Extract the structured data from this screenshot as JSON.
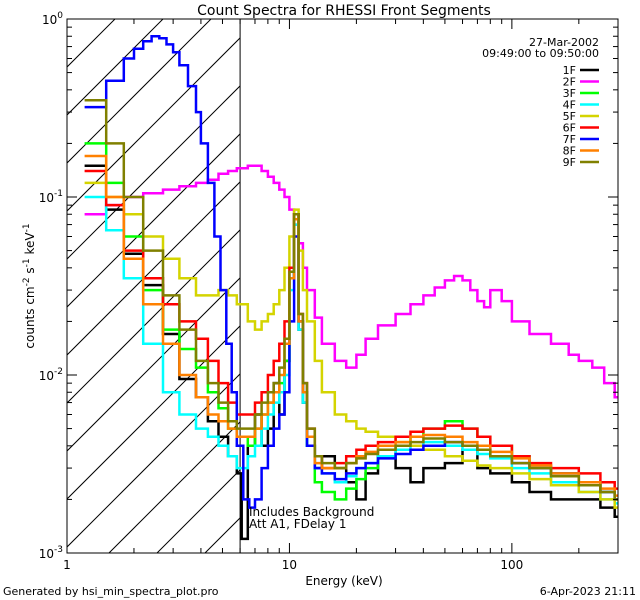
{
  "chart_data": {
    "type": "line",
    "title": "Count Spectra for RHESSI Front Segments",
    "xlabel": "Energy (keV)",
    "ylabel_parts": {
      "prefix": "counts cm",
      "sup1": "-2",
      "mid": " s",
      "sup2": "-1",
      "unit": " keV",
      "sup3": "-1"
    },
    "x_scale": "log",
    "y_scale": "log",
    "xlim": [
      1,
      300
    ],
    "ylim": [
      0.001,
      1
    ],
    "x_ticks": [
      {
        "value": 1,
        "label": "1"
      },
      {
        "value": 10,
        "label": "10"
      },
      {
        "value": 100,
        "label": "100"
      }
    ],
    "y_ticks": [
      {
        "value": 0.001,
        "base": "10",
        "exp": "-3"
      },
      {
        "value": 0.01,
        "base": "10",
        "exp": "-2"
      },
      {
        "value": 0.1,
        "base": "10",
        "exp": "-1"
      },
      {
        "value": 1,
        "base": "10",
        "exp": "0"
      }
    ],
    "shaded_region": {
      "x_min": 1,
      "x_max": 6,
      "pattern": "diagonal-hatch"
    },
    "date": "27-Mar-2002",
    "time_range": "09:49:00 to 09:50:00",
    "annotations": [
      "Includes Background",
      "Att A1, FDelay 1"
    ],
    "footer_left": "Generated by hsi_min_spectra_plot.pro",
    "footer_right": "6-Apr-2023 21:11",
    "legend_position": "top-right",
    "series": [
      {
        "name": "1F",
        "color": "#000000",
        "x": [
          1.2,
          1.5,
          1.8,
          2.2,
          2.7,
          3.2,
          3.8,
          4.3,
          4.8,
          5.3,
          5.8,
          6.1,
          6.5,
          7.0,
          7.5,
          8.0,
          8.5,
          9.0,
          9.5,
          10.0,
          10.5,
          11.0,
          11.5,
          12.0,
          13.0,
          14.0,
          16.0,
          18.0,
          20.0,
          22.0,
          25.0,
          30.0,
          35.0,
          40.0,
          50.0,
          60.0,
          70.0,
          80.0,
          100.0,
          120.0,
          150.0,
          200.0,
          250.0,
          290.0
        ],
        "y": [
          0.15,
          0.085,
          0.048,
          0.032,
          0.017,
          0.0095,
          0.0075,
          0.0055,
          0.0045,
          0.0035,
          0.0028,
          0.0012,
          0.004,
          0.006,
          0.004,
          0.005,
          0.009,
          0.006,
          0.012,
          0.035,
          0.08,
          0.018,
          0.007,
          0.004,
          0.003,
          0.0035,
          0.003,
          0.0025,
          0.002,
          0.0028,
          0.0035,
          0.003,
          0.0025,
          0.003,
          0.0032,
          0.0038,
          0.003,
          0.0028,
          0.0025,
          0.0022,
          0.002,
          0.002,
          0.0018,
          0.0016
        ]
      },
      {
        "name": "2F",
        "color": "#ff00ff",
        "x": [
          1.2,
          1.5,
          1.8,
          2.2,
          2.7,
          3.2,
          3.8,
          4.3,
          4.8,
          5.3,
          5.8,
          6.5,
          7.0,
          7.5,
          8.0,
          8.5,
          9.0,
          9.5,
          10.0,
          10.5,
          11.0,
          11.5,
          12.0,
          13.0,
          14.0,
          16.0,
          18.0,
          20.0,
          22.0,
          25.0,
          30.0,
          35.0,
          40.0,
          45.0,
          50.0,
          55.0,
          60.0,
          65.0,
          70.0,
          75.0,
          80.0,
          90.0,
          100.0,
          120.0,
          150.0,
          180.0,
          200.0,
          230.0,
          260.0,
          290.0
        ],
        "y": [
          0.08,
          0.09,
          0.1,
          0.105,
          0.11,
          0.115,
          0.12,
          0.125,
          0.135,
          0.14,
          0.145,
          0.15,
          0.15,
          0.14,
          0.13,
          0.12,
          0.11,
          0.1,
          0.085,
          0.07,
          0.055,
          0.04,
          0.03,
          0.021,
          0.015,
          0.012,
          0.011,
          0.013,
          0.016,
          0.019,
          0.022,
          0.025,
          0.028,
          0.031,
          0.034,
          0.036,
          0.034,
          0.03,
          0.026,
          0.024,
          0.03,
          0.026,
          0.02,
          0.017,
          0.015,
          0.013,
          0.012,
          0.011,
          0.009,
          0.0075
        ]
      },
      {
        "name": "3F",
        "color": "#00ff00",
        "x": [
          1.2,
          1.5,
          1.8,
          2.2,
          2.7,
          3.2,
          3.8,
          4.3,
          4.8,
          5.3,
          5.8,
          6.5,
          7.0,
          7.5,
          8.0,
          8.5,
          9.0,
          9.5,
          10.0,
          10.5,
          11.0,
          11.5,
          12.0,
          13.0,
          14.0,
          16.0,
          18.0,
          20.0,
          22.0,
          25.0,
          30.0,
          35.0,
          40.0,
          50.0,
          60.0,
          70.0,
          80.0,
          100.0,
          120.0,
          150.0,
          200.0,
          250.0,
          290.0
        ],
        "y": [
          0.2,
          0.12,
          0.06,
          0.03,
          0.018,
          0.014,
          0.011,
          0.008,
          0.0065,
          0.005,
          0.0045,
          0.004,
          0.005,
          0.006,
          0.007,
          0.008,
          0.009,
          0.012,
          0.035,
          0.075,
          0.02,
          0.008,
          0.004,
          0.0025,
          0.0022,
          0.002,
          0.0023,
          0.0026,
          0.003,
          0.0035,
          0.004,
          0.0045,
          0.005,
          0.0055,
          0.005,
          0.0045,
          0.004,
          0.0035,
          0.003,
          0.0028,
          0.0025,
          0.0022,
          0.002
        ]
      },
      {
        "name": "4F",
        "color": "#00ffff",
        "x": [
          1.2,
          1.5,
          1.8,
          2.2,
          2.7,
          3.2,
          3.8,
          4.3,
          4.8,
          5.3,
          5.8,
          6.5,
          7.0,
          7.5,
          8.0,
          8.5,
          9.0,
          9.5,
          10.0,
          10.5,
          11.0,
          11.5,
          12.0,
          13.0,
          14.0,
          16.0,
          18.0,
          20.0,
          22.0,
          25.0,
          30.0,
          35.0,
          40.0,
          50.0,
          60.0,
          70.0,
          80.0,
          100.0,
          120.0,
          150.0,
          200.0,
          250.0,
          290.0
        ],
        "y": [
          0.1,
          0.065,
          0.035,
          0.015,
          0.008,
          0.006,
          0.005,
          0.0045,
          0.004,
          0.0035,
          0.003,
          0.0035,
          0.004,
          0.005,
          0.006,
          0.007,
          0.008,
          0.01,
          0.03,
          0.07,
          0.018,
          0.007,
          0.004,
          0.003,
          0.0028,
          0.0025,
          0.0027,
          0.003,
          0.0032,
          0.0035,
          0.0038,
          0.004,
          0.0042,
          0.004,
          0.0038,
          0.0036,
          0.0034,
          0.003,
          0.0028,
          0.0025,
          0.0022,
          0.002,
          0.0019
        ]
      },
      {
        "name": "5F",
        "color": "#d4d400",
        "x": [
          1.2,
          1.5,
          1.8,
          2.2,
          2.7,
          3.2,
          3.8,
          4.3,
          4.8,
          5.3,
          5.8,
          6.5,
          7.0,
          7.5,
          8.0,
          8.5,
          9.0,
          9.5,
          10.0,
          10.5,
          11.0,
          11.5,
          12.0,
          13.0,
          14.0,
          16.0,
          18.0,
          20.0,
          22.0,
          25.0,
          30.0,
          35.0,
          40.0,
          50.0,
          60.0,
          70.0,
          80.0,
          100.0,
          120.0,
          150.0,
          200.0,
          250.0,
          290.0
        ],
        "y": [
          0.12,
          0.1,
          0.08,
          0.06,
          0.045,
          0.035,
          0.028,
          0.028,
          0.03,
          0.028,
          0.025,
          0.02,
          0.018,
          0.02,
          0.022,
          0.025,
          0.03,
          0.04,
          0.06,
          0.085,
          0.05,
          0.03,
          0.02,
          0.012,
          0.008,
          0.006,
          0.0055,
          0.005,
          0.0048,
          0.0045,
          0.0042,
          0.004,
          0.0038,
          0.0035,
          0.0033,
          0.0031,
          0.003,
          0.0028,
          0.0026,
          0.0024,
          0.0022,
          0.002,
          0.0018
        ]
      },
      {
        "name": "6F",
        "color": "#ff0000",
        "x": [
          1.2,
          1.5,
          1.8,
          2.2,
          2.7,
          3.2,
          3.8,
          4.3,
          4.8,
          5.3,
          5.8,
          6.5,
          7.0,
          7.5,
          8.0,
          8.5,
          9.0,
          9.5,
          10.0,
          10.5,
          11.0,
          11.5,
          12.0,
          13.0,
          14.0,
          16.0,
          18.0,
          20.0,
          22.0,
          25.0,
          30.0,
          35.0,
          40.0,
          50.0,
          60.0,
          70.0,
          80.0,
          100.0,
          120.0,
          150.0,
          200.0,
          250.0,
          290.0
        ],
        "y": [
          0.14,
          0.09,
          0.05,
          0.035,
          0.025,
          0.02,
          0.016,
          0.012,
          0.009,
          0.007,
          0.006,
          0.006,
          0.007,
          0.008,
          0.01,
          0.012,
          0.015,
          0.02,
          0.04,
          0.08,
          0.022,
          0.009,
          0.005,
          0.0035,
          0.003,
          0.0032,
          0.0035,
          0.0038,
          0.004,
          0.0042,
          0.0045,
          0.0048,
          0.005,
          0.0052,
          0.005,
          0.0045,
          0.004,
          0.0035,
          0.0032,
          0.003,
          0.0028,
          0.0025,
          0.0023
        ]
      },
      {
        "name": "7F",
        "color": "#0000ff",
        "x": [
          1.2,
          1.5,
          1.8,
          2.0,
          2.2,
          2.4,
          2.6,
          2.8,
          3.0,
          3.2,
          3.5,
          3.8,
          4.0,
          4.3,
          4.6,
          4.9,
          5.2,
          5.5,
          5.8,
          6.2,
          6.6,
          7.0,
          7.5,
          8.0,
          8.5,
          9.0,
          9.5,
          10.0,
          10.5,
          11.0,
          11.5,
          12.0,
          13.0,
          14.0,
          16.0,
          18.0,
          20.0,
          22.0,
          25.0,
          30.0,
          35.0,
          40.0,
          50.0,
          60.0,
          70.0,
          80.0,
          100.0,
          120.0,
          150.0,
          200.0,
          250.0,
          290.0
        ],
        "y": [
          0.32,
          0.45,
          0.6,
          0.68,
          0.75,
          0.8,
          0.78,
          0.72,
          0.65,
          0.55,
          0.42,
          0.3,
          0.2,
          0.12,
          0.06,
          0.03,
          0.015,
          0.008,
          0.004,
          0.002,
          0.0018,
          0.002,
          0.003,
          0.004,
          0.005,
          0.006,
          0.008,
          0.02,
          0.06,
          0.02,
          0.008,
          0.004,
          0.003,
          0.0028,
          0.0026,
          0.0028,
          0.003,
          0.0032,
          0.0034,
          0.0036,
          0.0038,
          0.004,
          0.0042,
          0.004,
          0.0038,
          0.0035,
          0.0032,
          0.003,
          0.0028,
          0.0025,
          0.0022,
          0.002
        ]
      },
      {
        "name": "8F",
        "color": "#ff8000",
        "x": [
          1.2,
          1.5,
          1.8,
          2.2,
          2.7,
          3.2,
          3.8,
          4.3,
          4.8,
          5.3,
          5.8,
          6.5,
          7.0,
          7.5,
          8.0,
          8.5,
          9.0,
          9.5,
          10.0,
          10.5,
          11.0,
          11.5,
          12.0,
          13.0,
          14.0,
          16.0,
          18.0,
          20.0,
          22.0,
          25.0,
          30.0,
          35.0,
          40.0,
          50.0,
          60.0,
          70.0,
          80.0,
          100.0,
          120.0,
          150.0,
          200.0,
          250.0,
          290.0
        ],
        "y": [
          0.17,
          0.1,
          0.045,
          0.025,
          0.015,
          0.01,
          0.0075,
          0.006,
          0.0055,
          0.005,
          0.0045,
          0.0045,
          0.005,
          0.006,
          0.007,
          0.008,
          0.01,
          0.015,
          0.035,
          0.075,
          0.02,
          0.008,
          0.0045,
          0.0032,
          0.003,
          0.003,
          0.0032,
          0.0035,
          0.0037,
          0.004,
          0.0042,
          0.0045,
          0.0046,
          0.0045,
          0.0042,
          0.004,
          0.0037,
          0.0034,
          0.0031,
          0.0028,
          0.0025,
          0.0023,
          0.0021
        ]
      },
      {
        "name": "9F",
        "color": "#808000",
        "x": [
          1.2,
          1.5,
          1.8,
          2.2,
          2.7,
          3.2,
          3.8,
          4.3,
          4.8,
          5.3,
          5.8,
          6.5,
          7.0,
          7.5,
          8.0,
          8.5,
          9.0,
          9.5,
          10.0,
          10.5,
          11.0,
          11.5,
          12.0,
          13.0,
          14.0,
          16.0,
          18.0,
          20.0,
          22.0,
          25.0,
          30.0,
          35.0,
          40.0,
          50.0,
          60.0,
          70.0,
          80.0,
          100.0,
          120.0,
          150.0,
          200.0,
          250.0,
          290.0
        ],
        "y": [
          0.35,
          0.2,
          0.1,
          0.05,
          0.028,
          0.018,
          0.012,
          0.009,
          0.007,
          0.0055,
          0.005,
          0.005,
          0.006,
          0.007,
          0.008,
          0.009,
          0.011,
          0.016,
          0.038,
          0.08,
          0.022,
          0.009,
          0.005,
          0.0035,
          0.0032,
          0.003,
          0.0032,
          0.0034,
          0.0036,
          0.0038,
          0.004,
          0.0042,
          0.0044,
          0.0042,
          0.004,
          0.0038,
          0.0035,
          0.0032,
          0.003,
          0.0027,
          0.0024,
          0.0022,
          0.002
        ]
      }
    ]
  }
}
